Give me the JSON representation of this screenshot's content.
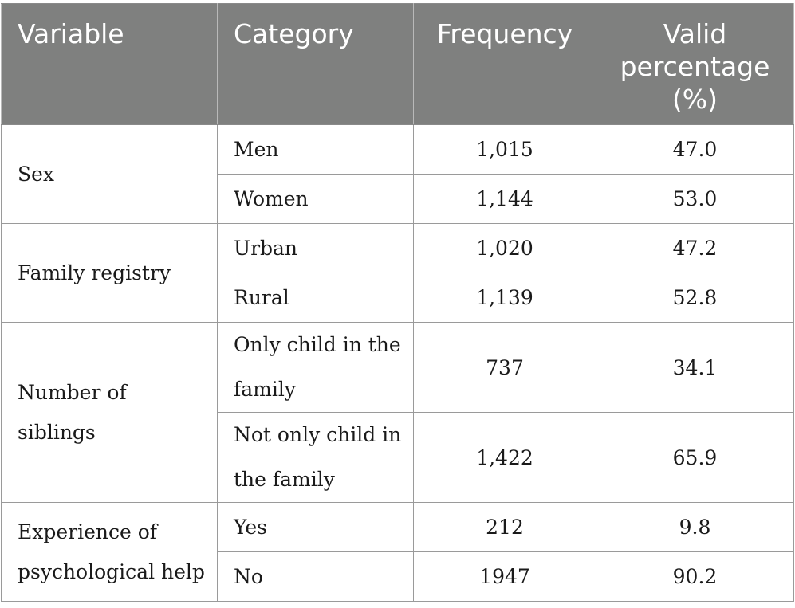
{
  "table": {
    "headers": [
      "Variable",
      "Category",
      "Frequency",
      "Valid percentage (%)"
    ],
    "header_valid_line1": "Valid",
    "header_valid_line2": "percentage",
    "header_valid_line3": "(%)",
    "groups": [
      {
        "variable": "Sex",
        "rows": [
          {
            "category": "Men",
            "frequency": "1,015",
            "percentage": "47.0"
          },
          {
            "category": "Women",
            "frequency": "1,144",
            "percentage": "53.0"
          }
        ]
      },
      {
        "variable": "Family registry",
        "rows": [
          {
            "category": "Urban",
            "frequency": "1,020",
            "percentage": "47.2"
          },
          {
            "category": "Rural",
            "frequency": "1,139",
            "percentage": "52.8"
          }
        ]
      },
      {
        "variable": "Number of siblings",
        "rows": [
          {
            "category": "Only child in the family",
            "frequency": "737",
            "percentage": "34.1"
          },
          {
            "category": "Not only child in the family",
            "frequency": "1,422",
            "percentage": "65.9"
          }
        ]
      },
      {
        "variable": "Experience of psychological help",
        "rows": [
          {
            "category": "Yes",
            "frequency": "212",
            "percentage": "9.8"
          },
          {
            "category": "No",
            "frequency": "1947",
            "percentage": "90.2"
          }
        ]
      }
    ]
  }
}
